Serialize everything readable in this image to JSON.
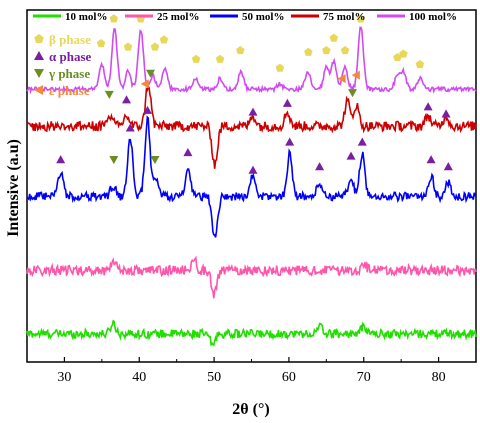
{
  "chart_data": {
    "type": "line",
    "xlabel": "2θ (°)",
    "ylabel": "Intensive (a.u)",
    "xlim": [
      25,
      85
    ],
    "x_ticks": [
      30,
      40,
      50,
      60,
      70,
      80
    ],
    "grid": false,
    "legend_position": "top",
    "series": [
      {
        "name": "10 mol%",
        "color": "#22dd00",
        "baseline": 0.08,
        "noise": 0.012,
        "peaks": [
          [
            36.5,
            0.03
          ],
          [
            49.8,
            -0.03
          ],
          [
            64.2,
            0.02
          ],
          [
            70.0,
            0.02
          ]
        ]
      },
      {
        "name": "25 mol%",
        "color": "#ff55aa",
        "baseline": 0.26,
        "noise": 0.014,
        "peaks": [
          [
            36.6,
            0.03
          ],
          [
            47.3,
            0.03
          ],
          [
            50.0,
            -0.07
          ],
          [
            70.0,
            0.02
          ]
        ]
      },
      {
        "name": "50 mol%",
        "color": "#0000ff",
        "baseline": 0.47,
        "noise": 0.012,
        "peaks": [
          [
            29.5,
            0.07
          ],
          [
            36.5,
            0.03
          ],
          [
            38.8,
            0.16
          ],
          [
            41.1,
            0.22
          ],
          [
            42.3,
            0.05
          ],
          [
            46.5,
            0.07
          ],
          [
            50.1,
            -0.12
          ],
          [
            55.2,
            0.06
          ],
          [
            60.1,
            0.12
          ],
          [
            64.1,
            0.04
          ],
          [
            68.3,
            0.05
          ],
          [
            69.8,
            0.12
          ],
          [
            79.0,
            0.06
          ],
          [
            81.3,
            0.04
          ]
        ]
      },
      {
        "name": "75 mol%",
        "color": "#cc0000",
        "baseline": 0.67,
        "noise": 0.014,
        "peaks": [
          [
            36.1,
            0.03
          ],
          [
            38.3,
            0.03
          ],
          [
            41.2,
            0.12
          ],
          [
            50.1,
            -0.11
          ],
          [
            55.2,
            0.03
          ],
          [
            59.8,
            0.04
          ],
          [
            67.8,
            0.07
          ],
          [
            69.0,
            0.06
          ],
          [
            78.6,
            0.03
          ],
          [
            81.0,
            0.03
          ]
        ]
      },
      {
        "name": "100 mol%",
        "color": "#d04cf0",
        "baseline": 0.775,
        "noise": 0.006,
        "peaks": [
          [
            35.0,
            0.07
          ],
          [
            36.7,
            0.17
          ],
          [
            38.5,
            0.05
          ],
          [
            40.2,
            0.17
          ],
          [
            41.8,
            0.04
          ],
          [
            43.4,
            0.06
          ],
          [
            47.6,
            0.03
          ],
          [
            50.8,
            0.03
          ],
          [
            53.6,
            0.05
          ],
          [
            58.8,
            0.015
          ],
          [
            62.5,
            0.05
          ],
          [
            65.0,
            0.06
          ],
          [
            66.0,
            0.08
          ],
          [
            67.5,
            0.06
          ],
          [
            69.6,
            0.18
          ],
          [
            74.5,
            0.04
          ],
          [
            75.3,
            0.05
          ],
          [
            77.5,
            0.03
          ]
        ]
      }
    ],
    "annotations": [
      {
        "label": "β phase",
        "marker": "pentagon",
        "color": "#e8d85a",
        "positions": [
          [
            34.9,
            0.905
          ],
          [
            36.6,
            0.975
          ],
          [
            38.5,
            0.895
          ],
          [
            40.2,
            0.975
          ],
          [
            42.1,
            0.895
          ],
          [
            43.3,
            0.915
          ],
          [
            47.6,
            0.86
          ],
          [
            50.8,
            0.86
          ],
          [
            53.5,
            0.885
          ],
          [
            58.8,
            0.835
          ],
          [
            62.6,
            0.88
          ],
          [
            65.0,
            0.885
          ],
          [
            66.0,
            0.92
          ],
          [
            67.5,
            0.885
          ],
          [
            69.6,
            0.975
          ],
          [
            74.5,
            0.865
          ],
          [
            75.3,
            0.875
          ],
          [
            77.5,
            0.845
          ]
        ]
      },
      {
        "label": "α phase",
        "marker": "triangle-up",
        "color": "#7a1fa2",
        "positions": [
          [
            29.5,
            0.575
          ],
          [
            38.3,
            0.745
          ],
          [
            38.8,
            0.665
          ],
          [
            41.1,
            0.715
          ],
          [
            46.5,
            0.595
          ],
          [
            55.2,
            0.545
          ],
          [
            55.2,
            0.71
          ],
          [
            59.8,
            0.735
          ],
          [
            60.1,
            0.625
          ],
          [
            64.1,
            0.555
          ],
          [
            68.3,
            0.585
          ],
          [
            69.8,
            0.625
          ],
          [
            78.6,
            0.725
          ],
          [
            79.0,
            0.575
          ],
          [
            81.0,
            0.705
          ],
          [
            81.3,
            0.555
          ]
        ]
      },
      {
        "label": "γ phase",
        "marker": "triangle-down",
        "color": "#6b8e23",
        "positions": [
          [
            36.0,
            0.76
          ],
          [
            36.6,
            0.575
          ],
          [
            41.5,
            0.82
          ],
          [
            42.1,
            0.575
          ],
          [
            68.5,
            0.765
          ]
        ]
      },
      {
        "label": "ε phase",
        "marker": "triangle-left",
        "color": "#f5883a",
        "positions": [
          [
            40.8,
            0.79
          ],
          [
            67.1,
            0.805
          ],
          [
            69.0,
            0.815
          ]
        ]
      }
    ]
  }
}
